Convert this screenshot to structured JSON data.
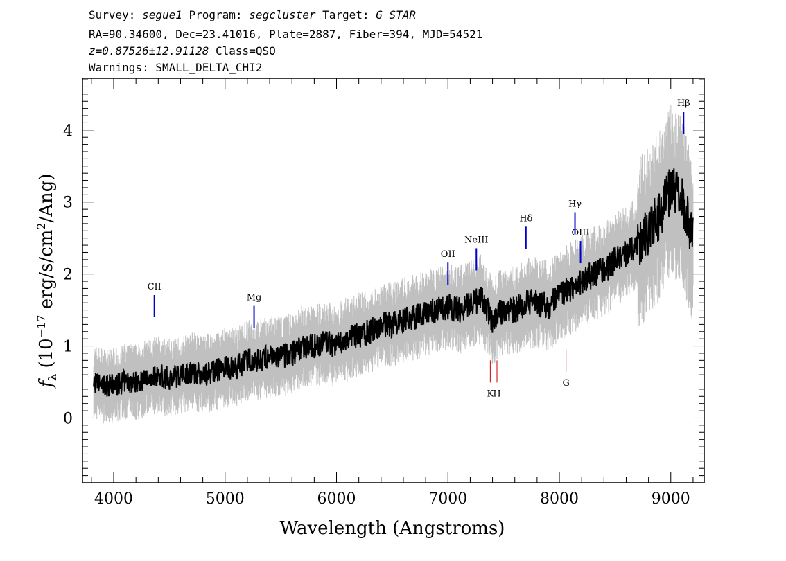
{
  "header": {
    "line1": {
      "survey_label": "Survey: ",
      "survey": "segue1",
      "program_label": " Program: ",
      "program": "segcluster",
      "target_label": " Target: ",
      "target": "G_STAR"
    },
    "line2": "RA=90.34600, Dec=23.41016, Plate=2887, Fiber=394, MJD=54521",
    "line3": {
      "z": "z=0.87526±12.91128",
      "class": " Class=QSO"
    },
    "line4": "Warnings: SMALL_DELTA_CHI2"
  },
  "chart_data": {
    "type": "line",
    "xlabel": "Wavelength (Angstroms)",
    "ylabel_prefix": "f",
    "ylabel_sub": "λ",
    "ylabel_main": " (10",
    "ylabel_exp": "−17",
    "ylabel_unit": " erg/s/cm",
    "ylabel_exp2": "2",
    "ylabel_end": "/Ang)",
    "xlim": [
      3720,
      9300
    ],
    "ylim": [
      -0.9,
      4.72
    ],
    "x_ticks": [
      4000,
      5000,
      6000,
      7000,
      8000,
      9000
    ],
    "y_ticks": [
      0,
      1,
      2,
      3,
      4
    ],
    "colors": {
      "spectrum": "#000000",
      "error": "#c0c0c0",
      "emission": "#0000cc",
      "absorption": "#cc0000"
    },
    "series": [
      {
        "role": "spectrum",
        "x": [
          3820,
          3900,
          4000,
          4100,
          4200,
          4300,
          4400,
          4500,
          4600,
          4700,
          4800,
          4900,
          5000,
          5100,
          5200,
          5300,
          5400,
          5500,
          5600,
          5700,
          5800,
          5900,
          6000,
          6100,
          6200,
          6300,
          6400,
          6500,
          6600,
          6700,
          6800,
          6900,
          7000,
          7100,
          7200,
          7300,
          7400,
          7500,
          7600,
          7700,
          7800,
          7900,
          8000,
          8100,
          8200,
          8300,
          8400,
          8500,
          8600,
          8700,
          8800,
          8900,
          9000,
          9100,
          9200
        ],
        "y": [
          0.5,
          0.45,
          0.45,
          0.5,
          0.5,
          0.55,
          0.6,
          0.55,
          0.6,
          0.65,
          0.6,
          0.65,
          0.7,
          0.7,
          0.8,
          0.8,
          0.85,
          0.85,
          0.9,
          1.0,
          1.0,
          1.05,
          1.0,
          1.1,
          1.15,
          1.2,
          1.3,
          1.3,
          1.35,
          1.4,
          1.45,
          1.5,
          1.55,
          1.5,
          1.6,
          1.65,
          1.35,
          1.5,
          1.5,
          1.6,
          1.6,
          1.55,
          1.7,
          1.8,
          1.9,
          2.0,
          2.05,
          2.2,
          2.3,
          2.4,
          2.6,
          2.8,
          3.2,
          3.0,
          2.5
        ]
      }
    ],
    "lines": {
      "emission": [
        {
          "label": "CII",
          "x": 4365,
          "y": 1.4
        },
        {
          "label": "Mg",
          "x": 5260,
          "y": 1.25
        },
        {
          "label": "OII",
          "x": 7000,
          "y": 1.85
        },
        {
          "label": "NeIII",
          "x": 7255,
          "y": 2.05
        },
        {
          "label": "Hδ",
          "x": 7700,
          "y": 2.35
        },
        {
          "label": "Hγ",
          "x": 8140,
          "y": 2.55
        },
        {
          "label": "OIII",
          "x": 8190,
          "y": 2.15
        },
        {
          "label": "Hβ",
          "x": 9115,
          "y": 3.95
        }
      ],
      "absorption": [
        {
          "label": "K",
          "x": 7380,
          "y": 0.8
        },
        {
          "label": "H",
          "x": 7440,
          "y": 0.8
        },
        {
          "label": "G",
          "x": 8060,
          "y": 0.95
        }
      ]
    }
  }
}
